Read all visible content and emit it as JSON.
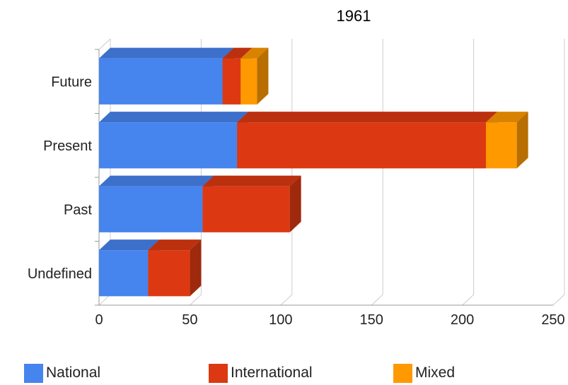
{
  "chart_data": {
    "type": "bar",
    "orientation": "horizontal",
    "stacked": true,
    "three_d": true,
    "title": "1961",
    "categories": [
      "Future",
      "Present",
      "Past",
      "Undefined"
    ],
    "series": [
      {
        "name": "National",
        "color": "#4684ee",
        "values": [
          68,
          76,
          57,
          27
        ]
      },
      {
        "name": "International",
        "color": "#dc3912",
        "values": [
          10,
          137,
          48,
          23
        ]
      },
      {
        "name": "Mixed",
        "color": "#ff9900",
        "values": [
          9,
          17,
          0,
          0
        ]
      }
    ],
    "xlim": [
      0,
      250
    ],
    "xticks": [
      "0",
      "50",
      "100",
      "150",
      "200",
      "250"
    ],
    "grid": true,
    "legend_position": "bottom"
  }
}
